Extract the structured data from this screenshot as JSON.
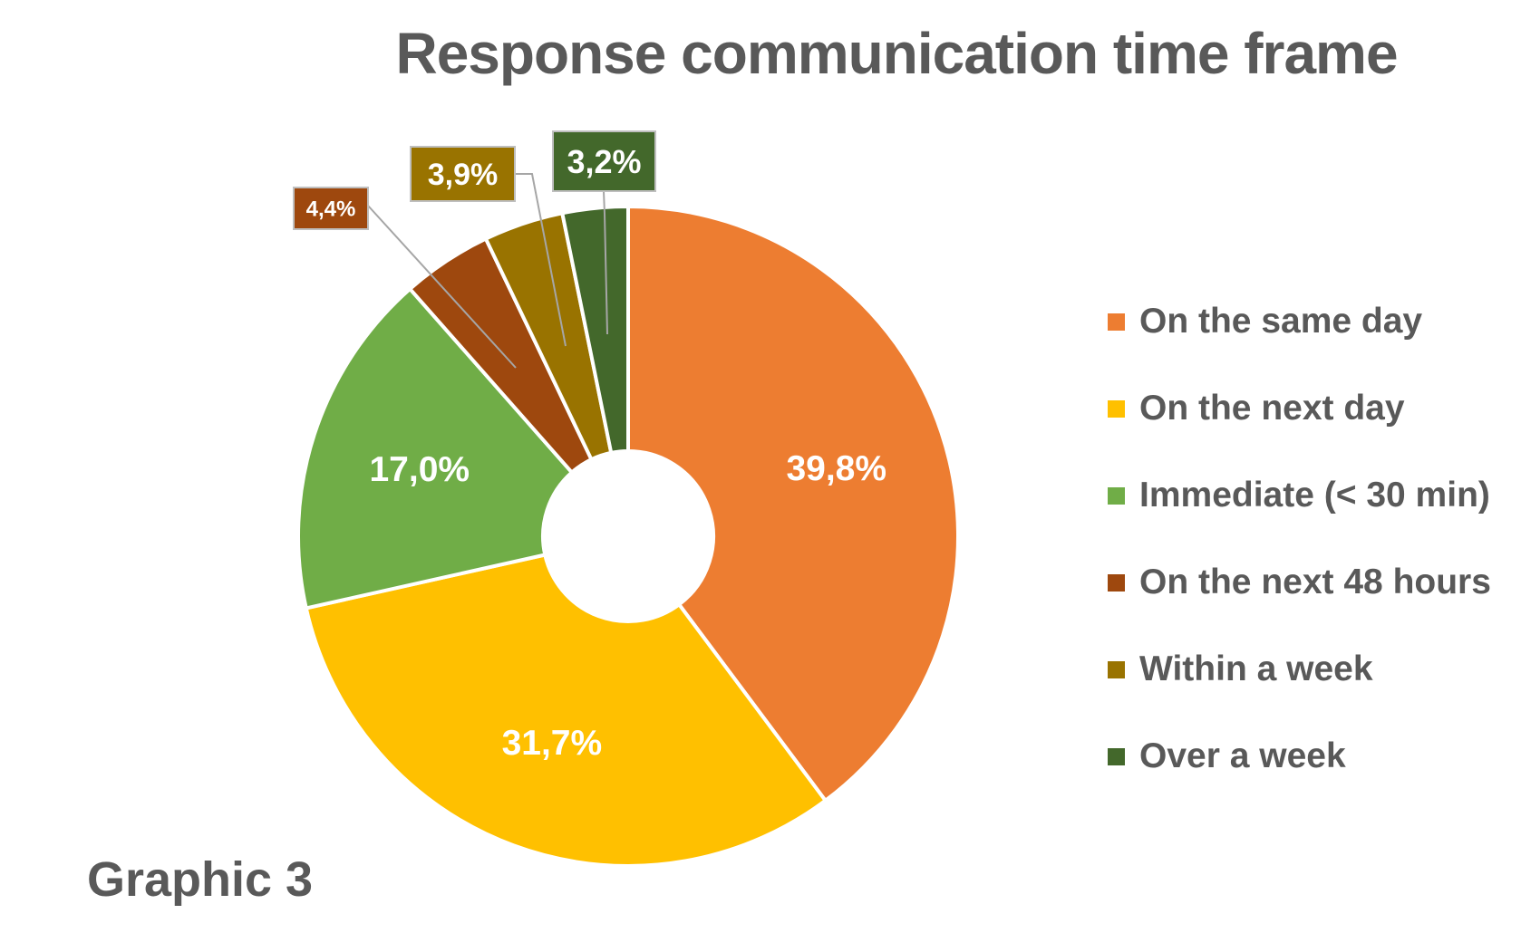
{
  "title": "Response communication time frame",
  "caption": "Graphic 3",
  "chart_data": {
    "type": "pie",
    "donut": true,
    "title": "Response communication time frame",
    "legend_position": "right",
    "slices": [
      {
        "name": "On the same day",
        "value": 39.8,
        "label": "39,8%",
        "color": "#ED7D31",
        "label_style": "inside"
      },
      {
        "name": "On the next day",
        "value": 31.7,
        "label": "31,7%",
        "color": "#FFC000",
        "label_style": "inside"
      },
      {
        "name": "Immediate (< 30 min)",
        "value": 17.0,
        "label": "17,0%",
        "color": "#70AD47",
        "label_style": "inside"
      },
      {
        "name": "On the next 48 hours",
        "value": 4.4,
        "label": "4,4%",
        "color": "#9E480E",
        "label_style": "callout"
      },
      {
        "name": "Within a week",
        "value": 3.9,
        "label": "3,9%",
        "color": "#997300",
        "label_style": "callout"
      },
      {
        "name": "Over a week",
        "value": 3.2,
        "label": "3,2%",
        "color": "#43682B",
        "label_style": "callout"
      }
    ]
  }
}
